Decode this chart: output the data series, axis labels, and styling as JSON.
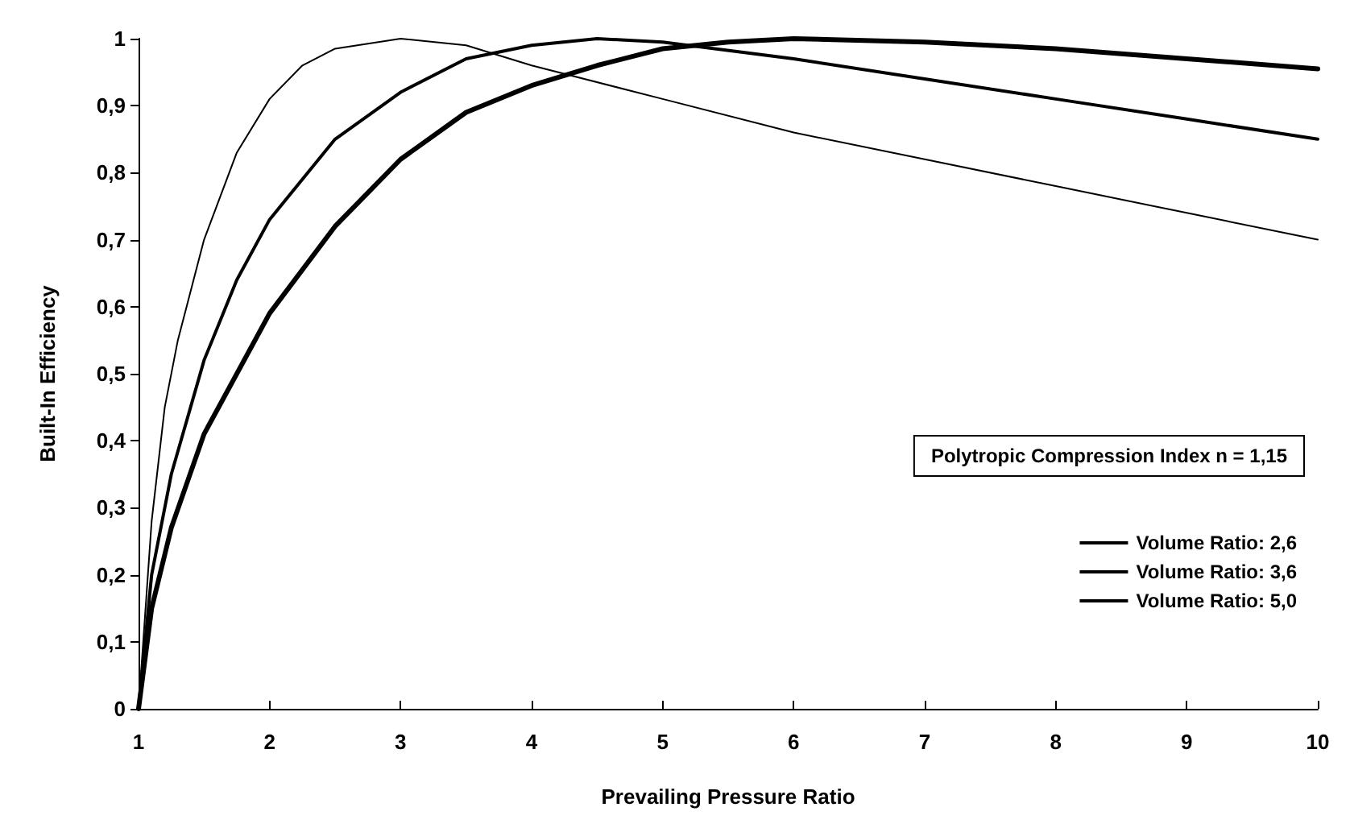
{
  "chart_data": {
    "type": "line",
    "xlabel": "Prevailing Pressure Ratio",
    "ylabel": "Built-In Efficiency",
    "annotations": [
      "Polytropic Compression Index n = 1,15"
    ],
    "xlim": [
      1,
      10
    ],
    "xticks": [
      1,
      2,
      3,
      4,
      5,
      6,
      7,
      8,
      9,
      10
    ],
    "ylim": [
      0,
      1
    ],
    "yticks": [
      0,
      {
        "value": 0.1,
        "label": "0,1"
      },
      {
        "value": 0.2,
        "label": "0,2"
      },
      {
        "value": 0.3,
        "label": "0,3"
      },
      {
        "value": 0.4,
        "label": "0,4"
      },
      {
        "value": 0.5,
        "label": "0,5"
      },
      {
        "value": 0.6,
        "label": "0,6"
      },
      {
        "value": 0.7,
        "label": "0,7"
      },
      {
        "value": 0.8,
        "label": "0,8"
      },
      {
        "value": 0.9,
        "label": "0,9"
      },
      1
    ],
    "grid": false,
    "legend": "right",
    "marker": "none",
    "line_style": "solid",
    "series": [
      {
        "name": "Volume Ratio: 2,6",
        "color": "#000000",
        "x": [
          1,
          1.1,
          1.2,
          1.3,
          1.5,
          1.75,
          2,
          2.25,
          2.5,
          3,
          3.5,
          4,
          5,
          6,
          7,
          8,
          9,
          10
        ],
        "values": [
          0,
          0.28,
          0.45,
          0.55,
          0.7,
          0.83,
          0.91,
          0.96,
          0.985,
          1,
          0.99,
          0.96,
          0.91,
          0.86,
          0.82,
          0.78,
          0.74,
          0.7
        ]
      },
      {
        "name": "Volume Ratio: 3,6",
        "color": "#000000",
        "x": [
          1,
          1.1,
          1.25,
          1.5,
          1.75,
          2,
          2.5,
          3,
          3.5,
          4,
          4.5,
          5,
          6,
          7,
          8,
          9,
          10
        ],
        "values": [
          0,
          0.2,
          0.35,
          0.52,
          0.64,
          0.73,
          0.85,
          0.92,
          0.97,
          0.99,
          1,
          0.995,
          0.97,
          0.94,
          0.91,
          0.88,
          0.85
        ]
      },
      {
        "name": "Volume Ratio: 5,0",
        "color": "#000000",
        "x": [
          1,
          1.1,
          1.25,
          1.5,
          2,
          2.5,
          3,
          3.5,
          4,
          4.5,
          5,
          5.5,
          6,
          7,
          8,
          9,
          10
        ],
        "values": [
          0,
          0.15,
          0.27,
          0.41,
          0.59,
          0.72,
          0.82,
          0.89,
          0.93,
          0.96,
          0.985,
          0.995,
          1,
          0.995,
          0.985,
          0.97,
          0.955
        ]
      }
    ]
  }
}
